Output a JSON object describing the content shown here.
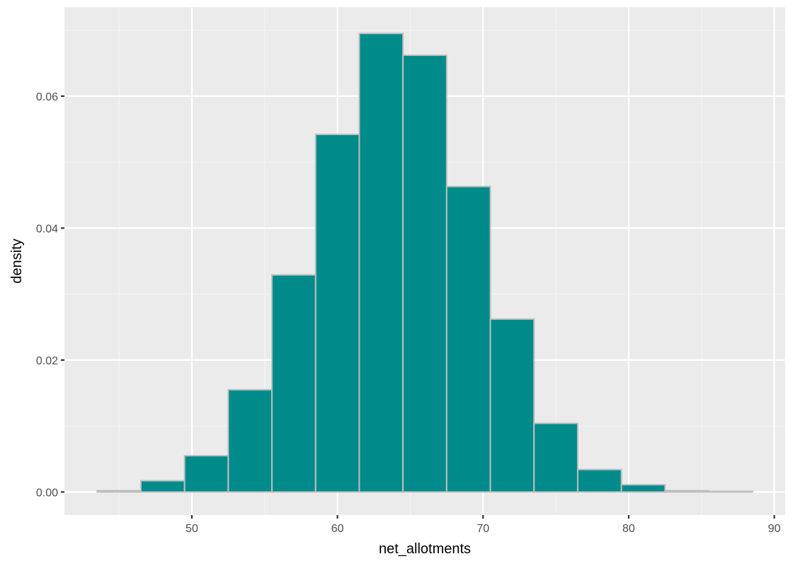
{
  "chart_data": {
    "type": "bar",
    "subtype": "histogram",
    "title": "",
    "xlabel": "net_allotments",
    "ylabel": "density",
    "xlim": [
      41.25,
      90.75
    ],
    "ylim": [
      -0.0035,
      0.0735
    ],
    "x_ticks": [
      50,
      60,
      70,
      80,
      90
    ],
    "y_ticks": [
      0.0,
      0.02,
      0.04,
      0.06
    ],
    "y_tick_labels": [
      "0.00",
      "0.02",
      "0.04",
      "0.06"
    ],
    "bin_width": 3,
    "bins": [
      {
        "x0": 43.5,
        "x1": 46.5,
        "density": 0.0002
      },
      {
        "x0": 46.5,
        "x1": 49.5,
        "density": 0.0017
      },
      {
        "x0": 49.5,
        "x1": 52.5,
        "density": 0.0055
      },
      {
        "x0": 52.5,
        "x1": 55.5,
        "density": 0.0155
      },
      {
        "x0": 55.5,
        "x1": 58.5,
        "density": 0.0329
      },
      {
        "x0": 58.5,
        "x1": 61.5,
        "density": 0.0542
      },
      {
        "x0": 61.5,
        "x1": 64.5,
        "density": 0.0695
      },
      {
        "x0": 64.5,
        "x1": 67.5,
        "density": 0.0662
      },
      {
        "x0": 67.5,
        "x1": 70.5,
        "density": 0.0463
      },
      {
        "x0": 70.5,
        "x1": 73.5,
        "density": 0.0262
      },
      {
        "x0": 73.5,
        "x1": 76.5,
        "density": 0.0104
      },
      {
        "x0": 76.5,
        "x1": 79.5,
        "density": 0.0034
      },
      {
        "x0": 79.5,
        "x1": 82.5,
        "density": 0.0011
      },
      {
        "x0": 82.5,
        "x1": 85.5,
        "density": 0.0002
      },
      {
        "x0": 85.5,
        "x1": 88.5,
        "density": 0.0001
      }
    ],
    "grid": true,
    "legend": "none",
    "colors": {
      "bar_fill": "#008b8b",
      "bar_outline": "#bebebe",
      "panel_bg": "#ebebeb",
      "grid_major": "#ffffff",
      "grid_minor": "#f5f5f5"
    }
  }
}
